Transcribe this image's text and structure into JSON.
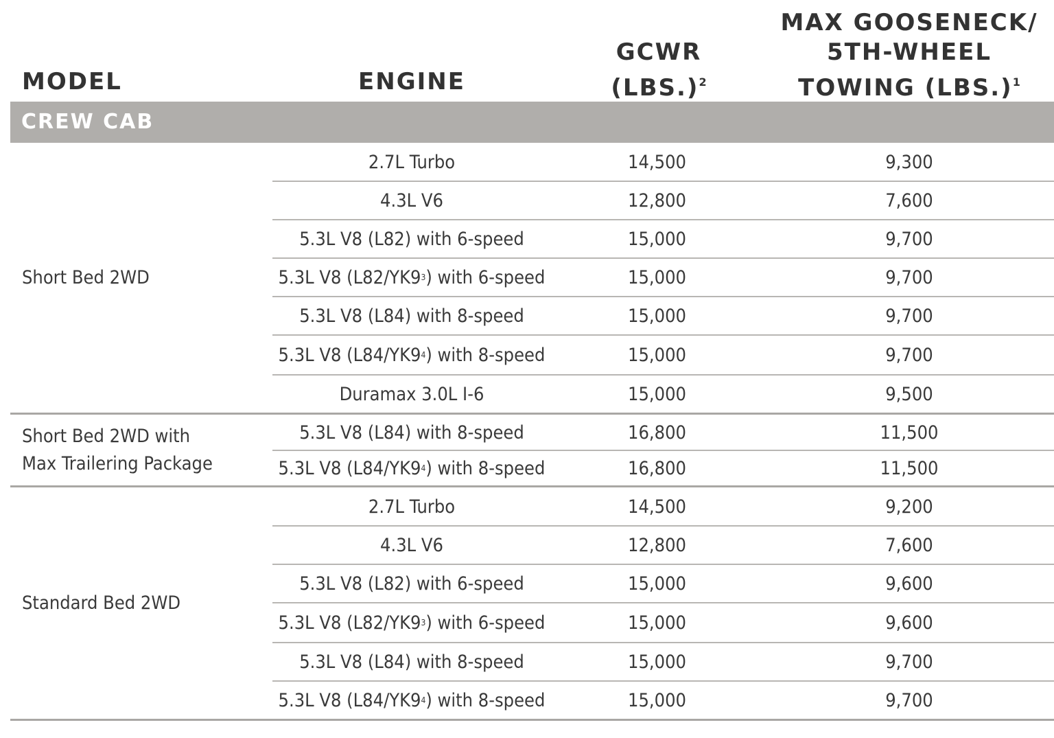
{
  "headers": {
    "model": "MODEL",
    "engine": "ENGINE",
    "gcwr_line1": "GCWR",
    "gcwr_line2": "(LBS.)",
    "gcwr_sup": "2",
    "tow_line1": "MAX GOOSENECK/",
    "tow_line2": "5TH-WHEEL",
    "tow_line3": "TOWING (LBS.)",
    "tow_sup": "1"
  },
  "section": "CREW CAB",
  "groups": [
    {
      "model_line1": "Short Bed 2WD",
      "model_line2": "",
      "rows": [
        {
          "engine": "2.7L Turbo",
          "sup": "",
          "engine_tail": "",
          "gcwr": "14,500",
          "tow": "9,300"
        },
        {
          "engine": "4.3L V6",
          "sup": "",
          "engine_tail": "",
          "gcwr": "12,800",
          "tow": "7,600"
        },
        {
          "engine": "5.3L V8 (L82) with 6-speed",
          "sup": "",
          "engine_tail": "",
          "gcwr": "15,000",
          "tow": "9,700"
        },
        {
          "engine": "5.3L V8 (L82/YK9",
          "sup": "3",
          "engine_tail": ") with 6-speed",
          "gcwr": "15,000",
          "tow": "9,700"
        },
        {
          "engine": "5.3L V8 (L84) with 8-speed",
          "sup": "",
          "engine_tail": "",
          "gcwr": "15,000",
          "tow": "9,700"
        },
        {
          "engine": "5.3L V8 (L84/YK9",
          "sup": "4",
          "engine_tail": ") with 8-speed",
          "gcwr": "15,000",
          "tow": "9,700"
        },
        {
          "engine": "Duramax 3.0L I-6",
          "sup": "",
          "engine_tail": "",
          "gcwr": "15,000",
          "tow": "9,500"
        }
      ]
    },
    {
      "model_line1": "Short Bed 2WD with",
      "model_line2": "Max Trailering Package",
      "rows": [
        {
          "engine": "5.3L V8 (L84) with 8-speed",
          "sup": "",
          "engine_tail": "",
          "gcwr": "16,800",
          "tow": "11,500"
        },
        {
          "engine": "5.3L V8 (L84/YK9",
          "sup": "4",
          "engine_tail": ") with 8-speed",
          "gcwr": "16,800",
          "tow": "11,500"
        }
      ]
    },
    {
      "model_line1": "Standard Bed 2WD",
      "model_line2": "",
      "rows": [
        {
          "engine": "2.7L Turbo",
          "sup": "",
          "engine_tail": "",
          "gcwr": "14,500",
          "tow": "9,200"
        },
        {
          "engine": "4.3L V6",
          "sup": "",
          "engine_tail": "",
          "gcwr": "12,800",
          "tow": "7,600"
        },
        {
          "engine": "5.3L V8 (L82) with 6-speed",
          "sup": "",
          "engine_tail": "",
          "gcwr": "15,000",
          "tow": "9,600"
        },
        {
          "engine": "5.3L V8 (L82/YK9",
          "sup": "3",
          "engine_tail": ") with 6-speed",
          "gcwr": "15,000",
          "tow": "9,600"
        },
        {
          "engine": "5.3L V8 (L84) with 8-speed",
          "sup": "",
          "engine_tail": "",
          "gcwr": "15,000",
          "tow": "9,700"
        },
        {
          "engine": "5.3L V8 (L84/YK9",
          "sup": "4",
          "engine_tail": ") with 8-speed",
          "gcwr": "15,000",
          "tow": "9,700"
        }
      ]
    }
  ]
}
